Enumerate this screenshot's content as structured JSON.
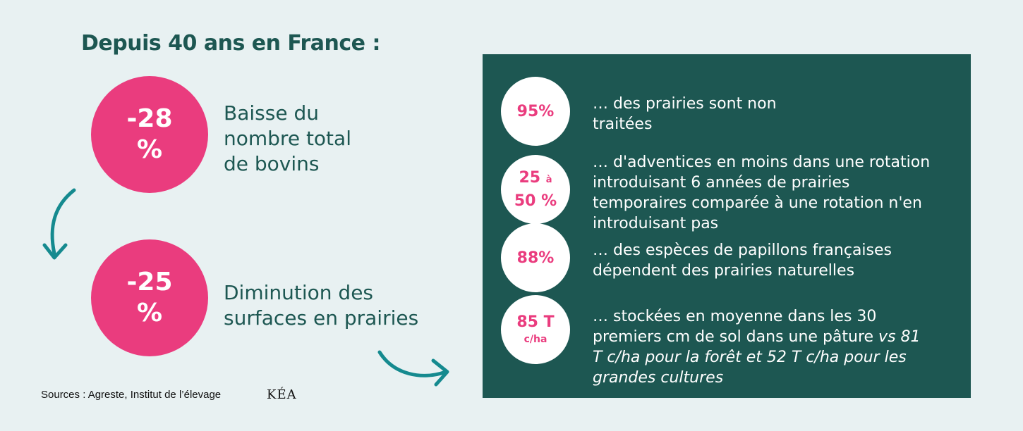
{
  "heading": "Depuis 40 ans en France :",
  "stats": [
    {
      "value_line1": "-28",
      "value_line2": "%",
      "text_lines": [
        "Baisse du",
        "nombre total",
        "de bovins"
      ]
    },
    {
      "value_line1": "-25",
      "value_line2": "%",
      "text_lines": [
        "Diminution des",
        "surfaces en prairies"
      ]
    }
  ],
  "facts": [
    {
      "circle_lines": [
        "95%"
      ],
      "text_lines": [
        "… des prairies sont non",
        "traitées"
      ]
    },
    {
      "circle_main1": "25",
      "circle_small": "à",
      "circle_main2": "50 %",
      "text_lines": [
        "… d'adventices en moins dans une rotation",
        "introduisant 6 années de prairies",
        "temporaires comparée à une rotation n'en",
        "introduisant pas"
      ]
    },
    {
      "circle_lines": [
        "88%"
      ],
      "text_lines": [
        "… des espèces de papillons françaises",
        "dépendent des prairies naturelles"
      ]
    },
    {
      "circle_main": "85 T",
      "circle_sub": "c/ha",
      "text_line1": "… stockées en moyenne dans les 30",
      "text_line2_plain": "premiers cm de sol dans une pâture ",
      "text_line2_italic": "vs 81",
      "text_line3_italic": "T c/ha pour la forêt et 52 T c/ha pour les",
      "text_line4_italic": "grandes cultures"
    }
  ],
  "sources": "Sources : Agreste, Institut de l’élevage",
  "logo": "KÉA",
  "colors": {
    "background": "#e8f1f2",
    "dark_green": "#1d5752",
    "pink": "#ea3c7e",
    "teal_arrow": "#158a8f"
  }
}
